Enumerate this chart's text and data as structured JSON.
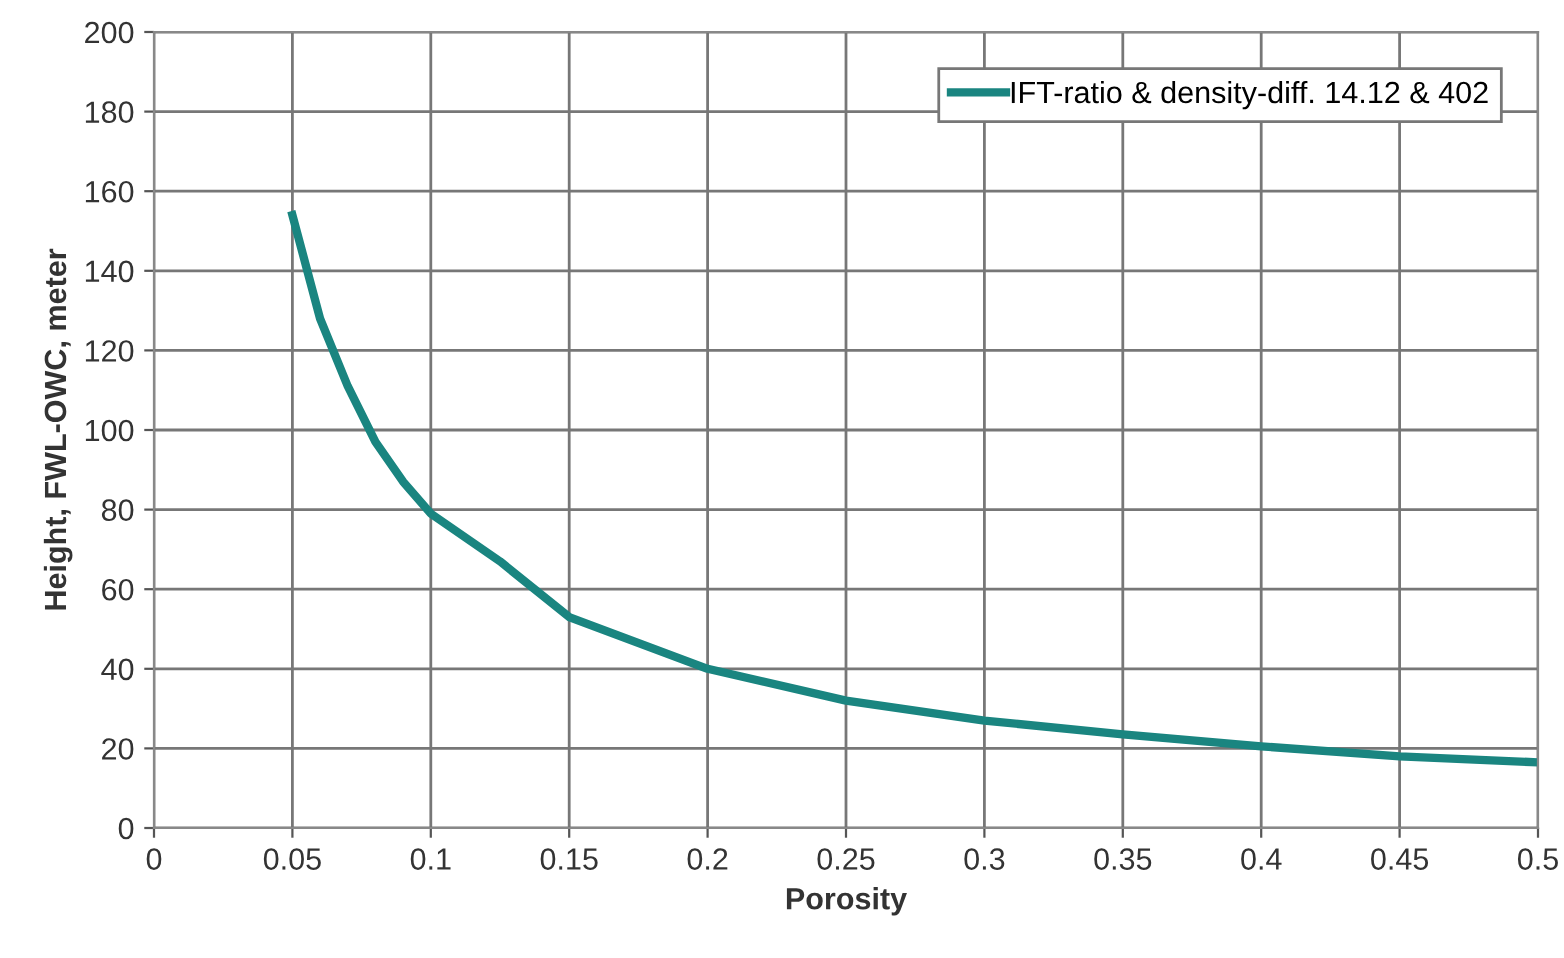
{
  "chart_data": {
    "type": "line",
    "xlabel": "Porosity",
    "ylabel": "Height, FWL-OWC, meter",
    "x": [
      0.05,
      0.06,
      0.07,
      0.08,
      0.09,
      0.1,
      0.125,
      0.15,
      0.2,
      0.25,
      0.3,
      0.35,
      0.4,
      0.45,
      0.5
    ],
    "series": [
      {
        "name": "IFT-ratio & density-diff. 14.12 & 402",
        "color": "#1a8580",
        "values": [
          154,
          128,
          111,
          97,
          87,
          79,
          67,
          53,
          40,
          32,
          27,
          23.5,
          20.5,
          18,
          16.5
        ]
      }
    ],
    "xlim": [
      0,
      0.5
    ],
    "xticks": [
      0,
      0.05,
      0.1,
      0.15,
      0.2,
      0.25,
      0.3,
      0.35,
      0.4,
      0.45,
      0.5
    ],
    "ylim": [
      0,
      200
    ],
    "yticks": [
      0,
      20,
      40,
      60,
      80,
      100,
      120,
      140,
      160,
      180,
      200
    ],
    "grid": true,
    "legend": "top right",
    "marker": "none",
    "line_style": "solid"
  }
}
